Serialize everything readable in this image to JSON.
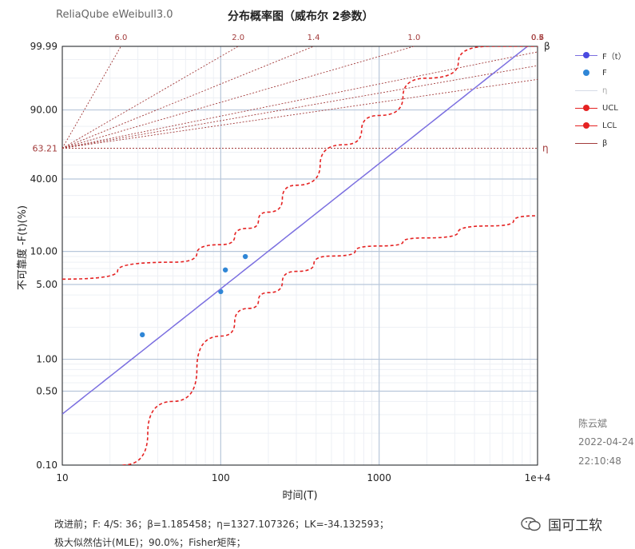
{
  "header": {
    "app_title": "ReliaQube eWeibull3.0",
    "chart_title": "分布概率图（威布尔 2参数）"
  },
  "legend": [
    {
      "label": "F（t）",
      "kind": "fit-line",
      "color": "#7b6fe0"
    },
    {
      "label": "F",
      "kind": "points",
      "color": "#2f86d6"
    },
    {
      "label": "η",
      "kind": "eta-line",
      "color": "#d6dbe6"
    },
    {
      "label": "UCL",
      "kind": "ucl",
      "color": "#e52222"
    },
    {
      "label": "LCL",
      "kind": "lcl",
      "color": "#e52222"
    },
    {
      "label": "β",
      "kind": "beta",
      "color": "#a23b3b"
    }
  ],
  "signature": {
    "author": "陈云斌",
    "date": "2022-04-24",
    "time": "22:10:48"
  },
  "footer": {
    "line1": "改进前；F: 4/S: 36；β=1.185458；η=1327.107326；LK=-34.132593；",
    "line2": "极大似然估计(MLE)；90.0%；Fisher矩阵；"
  },
  "watermark": {
    "text": "国可工软"
  },
  "chart_data": {
    "type": "scatter",
    "title": "分布概率图（威布尔 2参数）",
    "xlabel": "时间(T)",
    "ylabel": "不可靠度 -F(t)(%)",
    "x_scale": "log",
    "y_scale": "weibull",
    "xlim": [
      10,
      10000
    ],
    "ylim": [
      0.1,
      99.99
    ],
    "x_ticks": [
      10,
      100,
      1000,
      10000
    ],
    "x_tick_labels": [
      "10",
      "100",
      "1000",
      "1e+4"
    ],
    "y_ticks": [
      0.1,
      0.5,
      1.0,
      5.0,
      10.0,
      40.0,
      90.0,
      99.99
    ],
    "y_tick_labels": [
      "0.10",
      "0.50",
      "1.00",
      "5.00",
      "10.00",
      "40.00",
      "90.00",
      "99.99"
    ],
    "eta_label_value": "63.21",
    "eta_marker": "η",
    "beta_marker": "β",
    "grid": true,
    "legend_position": "right",
    "series": [
      {
        "name": "F",
        "kind": "points",
        "x": [
          32,
          100,
          107,
          143
        ],
        "y": [
          1.7,
          4.3,
          6.8,
          9.0
        ]
      },
      {
        "name": "F（t）",
        "kind": "line",
        "beta": 1.185458,
        "eta": 1327.107326
      },
      {
        "name": "UCL",
        "kind": "dashed",
        "x": [
          10,
          50,
          100,
          150,
          200,
          300,
          600,
          1000,
          2000,
          5000,
          10000
        ],
        "y": [
          5.6,
          8.0,
          11.5,
          16,
          22,
          36,
          66,
          87,
          99,
          99.99,
          99.99
        ]
      },
      {
        "name": "LCL",
        "kind": "dashed",
        "x": [
          24,
          50,
          100,
          150,
          200,
          300,
          500,
          1000,
          2000,
          5000,
          10000
        ],
        "y": [
          0.1,
          0.4,
          1.65,
          3.0,
          4.2,
          6.6,
          9.1,
          11.2,
          13.2,
          16.8,
          20.5
        ]
      }
    ],
    "beta_guides": [
      {
        "label": "6.0",
        "beta": 6.0
      },
      {
        "label": "2.0",
        "beta": 2.0
      },
      {
        "label": "1.4",
        "beta": 1.4
      },
      {
        "label": "1.0",
        "beta": 1.0
      },
      {
        "label": "0.7",
        "beta": 0.7
      },
      {
        "label": "0.6",
        "beta": 0.6
      },
      {
        "label": "0.5",
        "beta": 0.5
      }
    ]
  }
}
